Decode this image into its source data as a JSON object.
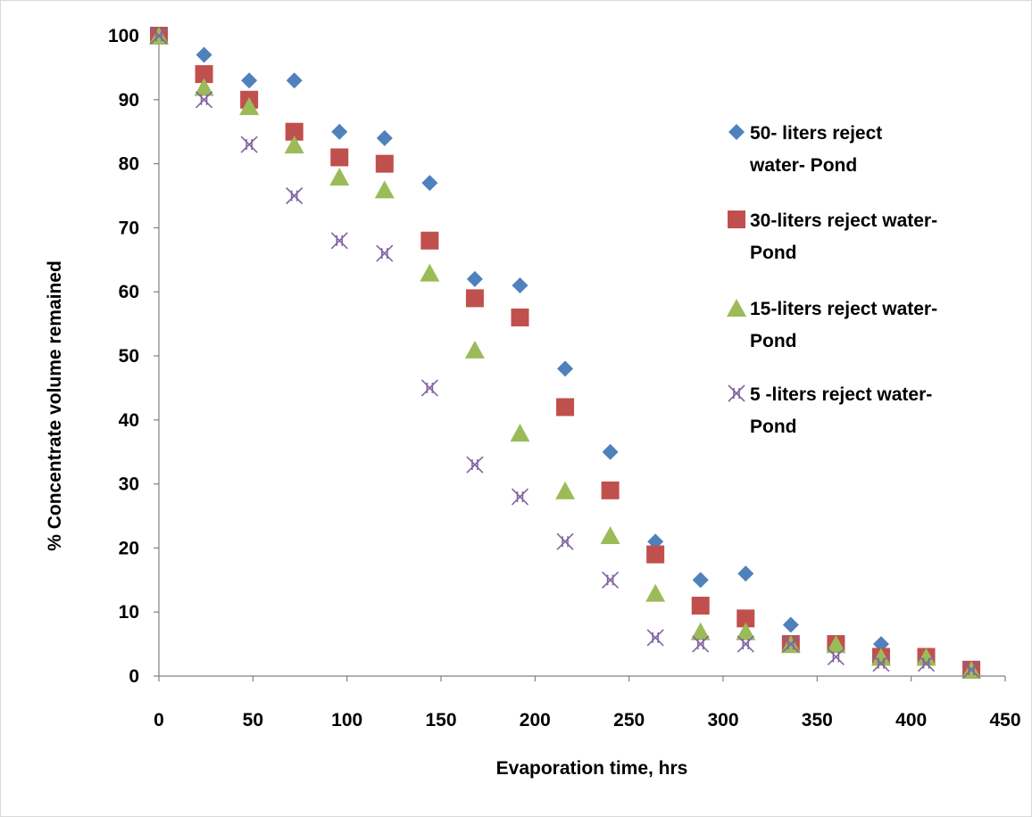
{
  "chart_data": {
    "type": "scatter",
    "title": "",
    "xlabel": "Evaporation time, hrs",
    "ylabel": "% Concentrate volume remained",
    "xlim": [
      0,
      450
    ],
    "ylim": [
      0,
      100
    ],
    "xticks": [
      0,
      50,
      100,
      150,
      200,
      250,
      300,
      350,
      400,
      450
    ],
    "yticks": [
      0,
      10,
      20,
      30,
      40,
      50,
      60,
      70,
      80,
      90,
      100
    ],
    "grid": false,
    "legend_position": "right",
    "series": [
      {
        "name_lines": [
          "50- liters reject",
          "water- Pond"
        ],
        "marker": "diamond",
        "color": "#4F81BD",
        "x": [
          0,
          24,
          48,
          72,
          96,
          120,
          144,
          168,
          192,
          216,
          240,
          264,
          288,
          312,
          336,
          360,
          384,
          408,
          432
        ],
        "y": [
          100,
          97,
          93,
          93,
          85,
          84,
          77,
          62,
          61,
          48,
          35,
          21,
          15,
          16,
          8,
          5,
          5,
          3,
          1
        ]
      },
      {
        "name_lines": [
          "30-liters reject water-",
          "Pond"
        ],
        "marker": "square",
        "color": "#C0504D",
        "x": [
          0,
          24,
          48,
          72,
          96,
          120,
          144,
          168,
          192,
          216,
          240,
          264,
          288,
          312,
          336,
          360,
          384,
          408,
          432
        ],
        "y": [
          100,
          94,
          90,
          85,
          81,
          80,
          68,
          59,
          56,
          42,
          29,
          19,
          11,
          9,
          5,
          5,
          3,
          3,
          1
        ]
      },
      {
        "name_lines": [
          "15-liters reject water-",
          "Pond"
        ],
        "marker": "triangle",
        "color": "#9BBB59",
        "x": [
          0,
          24,
          48,
          72,
          96,
          120,
          144,
          168,
          192,
          216,
          240,
          264,
          288,
          312,
          336,
          360,
          384,
          408,
          432
        ],
        "y": [
          100,
          92,
          89,
          83,
          78,
          76,
          63,
          51,
          38,
          29,
          22,
          13,
          7,
          7,
          5,
          5,
          3,
          3,
          1
        ]
      },
      {
        "name_lines": [
          "5 -liters reject water-",
          "Pond"
        ],
        "marker": "x",
        "color": "#8064A2",
        "x": [
          0,
          24,
          48,
          72,
          96,
          120,
          144,
          168,
          192,
          216,
          240,
          264,
          288,
          312,
          336,
          360,
          384,
          408,
          432
        ],
        "y": [
          100,
          90,
          83,
          75,
          68,
          66,
          45,
          33,
          28,
          21,
          15,
          6,
          5,
          5,
          5,
          3,
          2,
          2,
          1
        ]
      }
    ]
  }
}
